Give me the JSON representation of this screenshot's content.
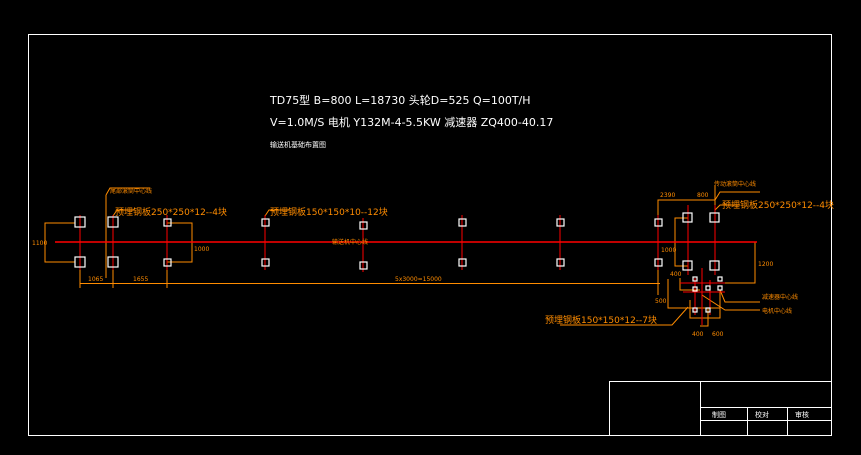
{
  "specs": {
    "line1": "TD75型 B=800 L=18730 头轮D=525 Q=100T/H",
    "line2": "V=1.0M/S 电机 Y132M-4-5.5KW 减速器 ZQ400-40.17",
    "line3": "输送机基础布置图"
  },
  "labels": {
    "tail_center": "尾部滚筒中心线",
    "tail_plate": "预埋钢板250*250*12--4块",
    "mid_plate": "预埋钢板150*150*10--12块",
    "head_center": "传动滚筒中心线",
    "head_plate": "预埋钢板250*250*12--4块",
    "drive_plate": "预埋钢板150*150*12--7块",
    "reducer_center": "减速器中心线",
    "motor_center": "电机中心线",
    "centerline_text": "输送机中心线"
  },
  "dimensions": {
    "left_width": "1100",
    "dim_1065": "1065",
    "dim_1655": "1655",
    "dim_1000": "1000",
    "span": "5x3000=15000",
    "head_top_a": "2390",
    "head_top_b": "800",
    "head_side": "1000",
    "head_right": "1200",
    "drive_a": "500",
    "drive_b": "400",
    "drive_c": "400",
    "drive_d": "600"
  },
  "title_block": {
    "drawn": "制图",
    "checked": "校对",
    "approved": "审核"
  },
  "colors": {
    "background": "#000000",
    "frame": "#ffffff",
    "centerline": "#ff0000",
    "dimension": "#ff8c00"
  }
}
